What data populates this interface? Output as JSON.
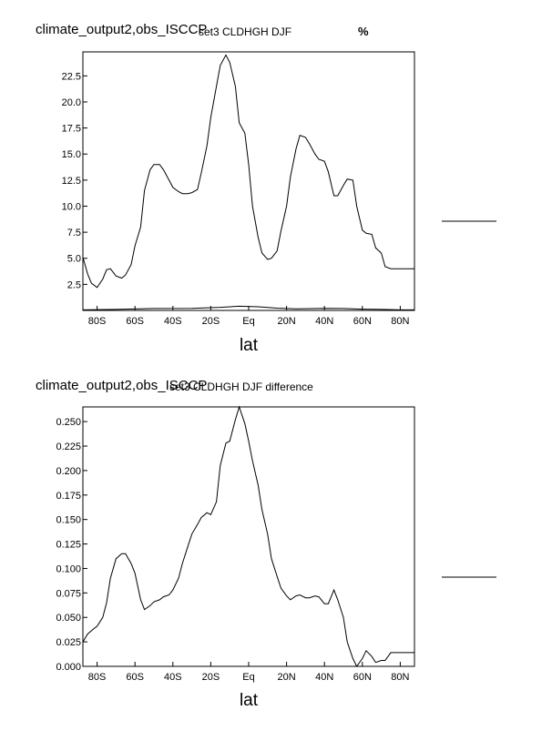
{
  "chart_data": [
    {
      "type": "line",
      "title_left": "climate_output2,obs_ISCCP",
      "title_center": "set3 CLDHGH DJF",
      "units": "%",
      "xlabel": "lat",
      "x_ticks": [
        "80S",
        "60S",
        "40S",
        "20S",
        "Eq",
        "20N",
        "40N",
        "60N",
        "80N"
      ],
      "x_tick_values": [
        -80,
        -60,
        -40,
        -20,
        0,
        20,
        40,
        60,
        80
      ],
      "y_ticks": [
        "2.5",
        "5.0",
        "7.5",
        "10.0",
        "12.5",
        "15.0",
        "17.5",
        "20.0",
        "22.5"
      ],
      "y_tick_values": [
        2.5,
        5.0,
        7.5,
        10.0,
        12.5,
        15.0,
        17.5,
        20.0,
        22.5
      ],
      "xlim": [
        -87.5,
        87.5
      ],
      "ylim": [
        0,
        24.8
      ],
      "grid": false,
      "legend_line": true,
      "series": [
        {
          "name": "",
          "x": [
            -87.5,
            -85,
            -83,
            -80,
            -77,
            -75,
            -73,
            -70,
            -67,
            -65,
            -62,
            -60,
            -57,
            -55,
            -52,
            -50,
            -47,
            -45,
            -42,
            -40,
            -37,
            -35,
            -32,
            -30,
            -27,
            -25,
            -22,
            -20,
            -17,
            -15,
            -12,
            -10,
            -7,
            -5,
            -2,
            0,
            2,
            5,
            7,
            10,
            12,
            15,
            17,
            20,
            22,
            25,
            27,
            30,
            32,
            35,
            37,
            40,
            42,
            45,
            47,
            50,
            52,
            55,
            57,
            60,
            62,
            65,
            67,
            70,
            72,
            75,
            77,
            80,
            82,
            85,
            87.5
          ],
          "y": [
            5.1,
            3.5,
            2.6,
            2.2,
            3.0,
            3.9,
            4.0,
            3.3,
            3.1,
            3.4,
            4.4,
            6.2,
            8.0,
            11.5,
            13.5,
            14.0,
            14.0,
            13.5,
            12.5,
            11.8,
            11.4,
            11.2,
            11.2,
            11.3,
            11.6,
            13.2,
            15.8,
            18.5,
            21.5,
            23.5,
            24.5,
            23.8,
            21.5,
            18.0,
            17.0,
            14.0,
            10.0,
            7.0,
            5.5,
            4.9,
            5.0,
            5.7,
            7.6,
            10.0,
            12.8,
            15.5,
            16.8,
            16.6,
            16.0,
            15.0,
            14.5,
            14.3,
            13.3,
            11.0,
            11.0,
            12.0,
            12.6,
            12.5,
            10.0,
            7.7,
            7.4,
            7.3,
            6.0,
            5.5,
            4.2,
            4.0,
            4.0,
            4.0,
            4.0,
            4.0,
            4.0
          ]
        },
        {
          "name": "",
          "x": [
            -87.5,
            -70,
            -50,
            -30,
            -15,
            -5,
            5,
            15,
            25,
            40,
            50,
            60,
            70,
            80,
            87.5
          ],
          "y": [
            0.05,
            0.1,
            0.18,
            0.2,
            0.3,
            0.4,
            0.35,
            0.22,
            0.15,
            0.2,
            0.18,
            0.12,
            0.1,
            0.05,
            0.05
          ]
        }
      ]
    },
    {
      "type": "line",
      "title_left": "climate_output2,obs_ISCCP",
      "title_center": "set3 CLDHGH DJF difference",
      "xlabel": "lat",
      "x_ticks": [
        "80S",
        "60S",
        "40S",
        "20S",
        "Eq",
        "20N",
        "40N",
        "60N",
        "80N"
      ],
      "x_tick_values": [
        -80,
        -60,
        -40,
        -20,
        0,
        20,
        40,
        60,
        80
      ],
      "y_ticks": [
        "0.000",
        "0.025",
        "0.050",
        "0.075",
        "0.100",
        "0.125",
        "0.150",
        "0.175",
        "0.200",
        "0.225",
        "0.250"
      ],
      "y_tick_values": [
        0.0,
        0.025,
        0.05,
        0.075,
        0.1,
        0.125,
        0.15,
        0.175,
        0.2,
        0.225,
        0.25
      ],
      "xlim": [
        -87.5,
        87.5
      ],
      "ylim": [
        0,
        0.265
      ],
      "grid": false,
      "legend_line": true,
      "series": [
        {
          "name": "",
          "x": [
            -87.5,
            -85,
            -82,
            -80,
            -77,
            -75,
            -73,
            -70,
            -67,
            -65,
            -62,
            -60,
            -57,
            -55,
            -52,
            -50,
            -47,
            -45,
            -42,
            -40,
            -37,
            -35,
            -32,
            -30,
            -27,
            -25,
            -22,
            -20,
            -17,
            -15,
            -12,
            -10,
            -7,
            -5,
            -2,
            0,
            2,
            5,
            7,
            10,
            12,
            15,
            17,
            20,
            22,
            25,
            27,
            30,
            32,
            35,
            37,
            40,
            42,
            45,
            47,
            50,
            52,
            55,
            57,
            60,
            62,
            65,
            67,
            70,
            72,
            75,
            77,
            80,
            82,
            85,
            87.5
          ],
          "y": [
            0.025,
            0.033,
            0.038,
            0.041,
            0.05,
            0.065,
            0.09,
            0.11,
            0.115,
            0.115,
            0.105,
            0.095,
            0.068,
            0.058,
            0.062,
            0.066,
            0.068,
            0.071,
            0.073,
            0.078,
            0.09,
            0.105,
            0.123,
            0.135,
            0.145,
            0.152,
            0.157,
            0.155,
            0.168,
            0.205,
            0.228,
            0.23,
            0.252,
            0.265,
            0.248,
            0.23,
            0.21,
            0.185,
            0.16,
            0.135,
            0.11,
            0.092,
            0.08,
            0.072,
            0.068,
            0.072,
            0.073,
            0.07,
            0.07,
            0.072,
            0.071,
            0.064,
            0.064,
            0.078,
            0.068,
            0.05,
            0.025,
            0.008,
            0.0,
            0.008,
            0.016,
            0.01,
            0.004,
            0.006,
            0.006,
            0.014,
            0.014,
            0.014,
            0.014,
            0.014,
            0.014
          ]
        }
      ]
    }
  ]
}
